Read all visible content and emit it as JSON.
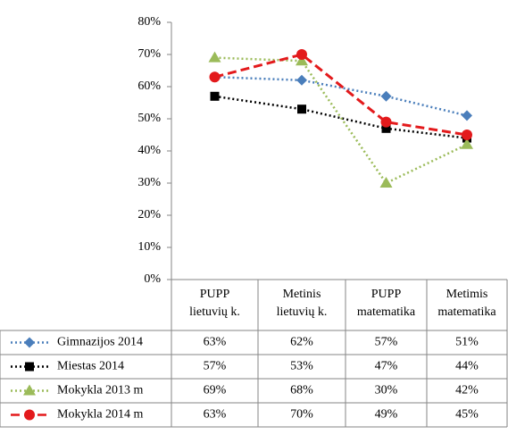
{
  "chart_data": {
    "type": "line",
    "categories": [
      [
        "PUPP",
        "lietuvių k."
      ],
      [
        "Metinis",
        "lietuvių k."
      ],
      [
        "PUPP",
        "matematika"
      ],
      [
        "Metimis",
        "matematika"
      ]
    ],
    "series": [
      {
        "name": "Gimnazijos 2014",
        "color": "#4a7ebb",
        "dash": "2 3",
        "marker": "diamond",
        "values": [
          63,
          62,
          57,
          51
        ],
        "value_labels": [
          "63%",
          "62%",
          "57%",
          "51%"
        ]
      },
      {
        "name": "Miestas 2014",
        "color": "#000000",
        "dash": "2 3",
        "marker": "square",
        "values": [
          57,
          53,
          47,
          44
        ],
        "value_labels": [
          "57%",
          "53%",
          "47%",
          "44%"
        ]
      },
      {
        "name": "Mokykla 2013 m",
        "color": "#9bbb59",
        "dash": "2 3",
        "marker": "triangle",
        "values": [
          69,
          68,
          30,
          42
        ],
        "value_labels": [
          "69%",
          "68%",
          "30%",
          "42%"
        ]
      },
      {
        "name": "Mokykla 2014 m",
        "color": "#e31a1c",
        "dash": "10 5",
        "marker": "circle",
        "values": [
          63,
          70,
          49,
          45
        ],
        "value_labels": [
          "63%",
          "70%",
          "49%",
          "45%"
        ]
      }
    ],
    "ylim": [
      0,
      80
    ],
    "yticks": [
      {
        "value": 0,
        "label": "0%"
      },
      {
        "value": 10,
        "label": "10%"
      },
      {
        "value": 20,
        "label": "20%"
      },
      {
        "value": 30,
        "label": "30%"
      },
      {
        "value": 40,
        "label": "40%"
      },
      {
        "value": 50,
        "label": "50%"
      },
      {
        "value": 60,
        "label": "60%"
      },
      {
        "value": 70,
        "label": "70%"
      },
      {
        "value": 80,
        "label": "80%"
      }
    ],
    "grid": false
  }
}
